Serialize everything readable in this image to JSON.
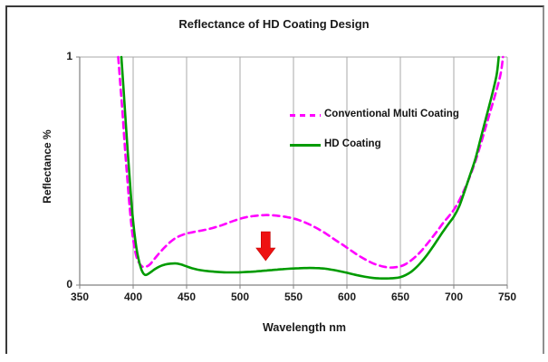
{
  "window": {
    "background_color": "#ffffff",
    "border_color": "#3a3a3a"
  },
  "chart": {
    "title": "Reflectance of HD Coating Design",
    "xlabel": "Wavelength nm",
    "ylabel": "Reflectance %"
  },
  "colors": {
    "gridline": "#a8a8a8",
    "axis": "#808080",
    "text": "#1a1a1a",
    "arrow_red": "#ee1111"
  },
  "chart_data": {
    "type": "line",
    "title": "Reflectance of HD Coating Design",
    "xlabel": "Wavelength nm",
    "ylabel": "Reflectance %",
    "xlim": [
      350,
      750
    ],
    "ylim": [
      0,
      1
    ],
    "x_ticks": [
      350,
      400,
      450,
      500,
      550,
      600,
      650,
      700,
      750
    ],
    "y_ticks": [
      0,
      1
    ],
    "grid": "vertical-only",
    "legend_position": "inside-upper-center",
    "series": [
      {
        "name": "Conventional Multi Coating",
        "color": "#ff00ff",
        "line_style": "dashed",
        "points": [
          [
            386,
            1.0
          ],
          [
            388,
            0.88
          ],
          [
            390,
            0.76
          ],
          [
            392,
            0.62
          ],
          [
            394,
            0.5
          ],
          [
            396,
            0.38
          ],
          [
            398,
            0.28
          ],
          [
            400,
            0.2
          ],
          [
            402,
            0.145
          ],
          [
            404,
            0.112
          ],
          [
            406,
            0.094
          ],
          [
            408,
            0.083
          ],
          [
            410,
            0.079
          ],
          [
            413,
            0.082
          ],
          [
            416,
            0.092
          ],
          [
            420,
            0.115
          ],
          [
            425,
            0.143
          ],
          [
            430,
            0.168
          ],
          [
            435,
            0.19
          ],
          [
            440,
            0.207
          ],
          [
            445,
            0.218
          ],
          [
            450,
            0.226
          ],
          [
            455,
            0.231
          ],
          [
            460,
            0.236
          ],
          [
            465,
            0.24
          ],
          [
            470,
            0.245
          ],
          [
            475,
            0.251
          ],
          [
            480,
            0.258
          ],
          [
            485,
            0.266
          ],
          [
            490,
            0.275
          ],
          [
            495,
            0.283
          ],
          [
            500,
            0.291
          ],
          [
            505,
            0.297
          ],
          [
            510,
            0.301
          ],
          [
            515,
            0.304
          ],
          [
            520,
            0.306
          ],
          [
            525,
            0.307
          ],
          [
            530,
            0.306
          ],
          [
            535,
            0.304
          ],
          [
            540,
            0.301
          ],
          [
            545,
            0.297
          ],
          [
            550,
            0.292
          ],
          [
            555,
            0.285
          ],
          [
            560,
            0.276
          ],
          [
            565,
            0.266
          ],
          [
            570,
            0.254
          ],
          [
            575,
            0.241
          ],
          [
            580,
            0.227
          ],
          [
            585,
            0.211
          ],
          [
            590,
            0.195
          ],
          [
            595,
            0.18
          ],
          [
            600,
            0.164
          ],
          [
            605,
            0.148
          ],
          [
            610,
            0.132
          ],
          [
            615,
            0.118
          ],
          [
            620,
            0.105
          ],
          [
            625,
            0.094
          ],
          [
            630,
            0.086
          ],
          [
            635,
            0.08
          ],
          [
            640,
            0.077
          ],
          [
            645,
            0.078
          ],
          [
            650,
            0.082
          ],
          [
            655,
            0.092
          ],
          [
            660,
            0.108
          ],
          [
            665,
            0.128
          ],
          [
            670,
            0.152
          ],
          [
            675,
            0.18
          ],
          [
            680,
            0.21
          ],
          [
            685,
            0.24
          ],
          [
            690,
            0.272
          ],
          [
            695,
            0.3
          ],
          [
            700,
            0.33
          ],
          [
            705,
            0.37
          ],
          [
            710,
            0.42
          ],
          [
            715,
            0.475
          ],
          [
            720,
            0.54
          ],
          [
            725,
            0.615
          ],
          [
            730,
            0.695
          ],
          [
            735,
            0.775
          ],
          [
            740,
            0.855
          ],
          [
            744,
            0.93
          ],
          [
            746,
            1.0
          ]
        ]
      },
      {
        "name": "HD Coating",
        "color": "#009b00",
        "line_style": "solid",
        "points": [
          [
            389,
            1.0
          ],
          [
            391,
            0.86
          ],
          [
            393,
            0.72
          ],
          [
            395,
            0.58
          ],
          [
            397,
            0.45
          ],
          [
            399,
            0.33
          ],
          [
            401,
            0.235
          ],
          [
            403,
            0.165
          ],
          [
            405,
            0.115
          ],
          [
            407,
            0.078
          ],
          [
            409,
            0.055
          ],
          [
            411,
            0.045
          ],
          [
            413,
            0.046
          ],
          [
            415,
            0.052
          ],
          [
            418,
            0.062
          ],
          [
            421,
            0.072
          ],
          [
            425,
            0.082
          ],
          [
            430,
            0.09
          ],
          [
            435,
            0.094
          ],
          [
            440,
            0.095
          ],
          [
            445,
            0.09
          ],
          [
            450,
            0.082
          ],
          [
            455,
            0.074
          ],
          [
            460,
            0.068
          ],
          [
            465,
            0.064
          ],
          [
            470,
            0.061
          ],
          [
            475,
            0.059
          ],
          [
            480,
            0.057
          ],
          [
            485,
            0.056
          ],
          [
            490,
            0.0555
          ],
          [
            495,
            0.0555
          ],
          [
            500,
            0.056
          ],
          [
            505,
            0.057
          ],
          [
            510,
            0.0585
          ],
          [
            515,
            0.06
          ],
          [
            520,
            0.062
          ],
          [
            525,
            0.064
          ],
          [
            530,
            0.066
          ],
          [
            535,
            0.068
          ],
          [
            540,
            0.07
          ],
          [
            545,
            0.0715
          ],
          [
            550,
            0.0725
          ],
          [
            555,
            0.074
          ],
          [
            560,
            0.0745
          ],
          [
            565,
            0.075
          ],
          [
            570,
            0.0748
          ],
          [
            575,
            0.074
          ],
          [
            580,
            0.072
          ],
          [
            585,
            0.068
          ],
          [
            590,
            0.064
          ],
          [
            595,
            0.059
          ],
          [
            600,
            0.054
          ],
          [
            605,
            0.048
          ],
          [
            610,
            0.043
          ],
          [
            615,
            0.038
          ],
          [
            620,
            0.034
          ],
          [
            625,
            0.031
          ],
          [
            630,
            0.0295
          ],
          [
            635,
            0.029
          ],
          [
            640,
            0.0295
          ],
          [
            645,
            0.031
          ],
          [
            650,
            0.035
          ],
          [
            655,
            0.044
          ],
          [
            660,
            0.058
          ],
          [
            665,
            0.078
          ],
          [
            670,
            0.103
          ],
          [
            675,
            0.132
          ],
          [
            680,
            0.165
          ],
          [
            685,
            0.2
          ],
          [
            690,
            0.235
          ],
          [
            695,
            0.268
          ],
          [
            700,
            0.3
          ],
          [
            705,
            0.345
          ],
          [
            710,
            0.41
          ],
          [
            715,
            0.48
          ],
          [
            720,
            0.55
          ],
          [
            725,
            0.64
          ],
          [
            730,
            0.73
          ],
          [
            735,
            0.82
          ],
          [
            740,
            0.92
          ],
          [
            742,
            1.0
          ]
        ]
      }
    ],
    "annotations": [
      {
        "type": "arrow",
        "direction": "down",
        "x": 524,
        "y_from": 0.234,
        "y_to": 0.107,
        "color": "#ee1111",
        "meaning": "reflectance reduction of HD coating vs conventional"
      }
    ]
  }
}
